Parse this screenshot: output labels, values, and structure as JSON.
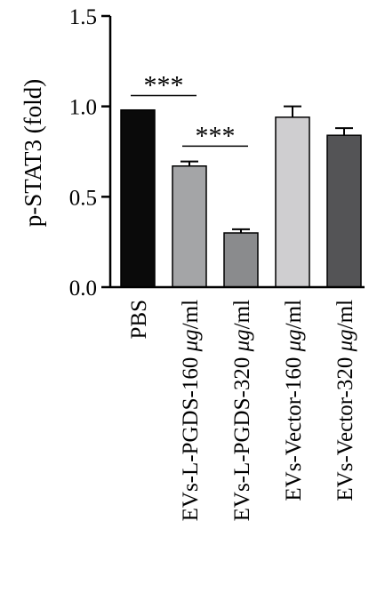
{
  "chart_data": {
    "type": "bar",
    "ylabel": "p-STAT3 (fold)",
    "xlabel": "",
    "ylim": [
      0,
      1.5
    ],
    "yticks": [
      0.0,
      0.5,
      1.0,
      1.5
    ],
    "ytick_labels": [
      "0.0",
      "0.5",
      "1.0",
      "1.5"
    ],
    "categories": [
      {
        "label": "PBS",
        "pre": "PBS",
        "unit": "",
        "post": ""
      },
      {
        "label": "EVs-L-PGDS-160 μg/ml",
        "pre": "EVs-L-PGDS-160 ",
        "unit": "μg",
        "post": "/ml"
      },
      {
        "label": "EVs-L-PGDS-320 μg/ml",
        "pre": "EVs-L-PGDS-320 ",
        "unit": "μg",
        "post": "/ml"
      },
      {
        "label": "EVs-Vector-160 μg/ml",
        "pre": "EVs-Vector-160 ",
        "unit": "μg",
        "post": "/ml"
      },
      {
        "label": "EVs-Vector-320 μg/ml",
        "pre": "EVs-Vector-320 ",
        "unit": "μg",
        "post": "/ml"
      }
    ],
    "values": [
      0.98,
      0.67,
      0.3,
      0.94,
      0.84
    ],
    "errors": [
      0.0,
      0.025,
      0.02,
      0.06,
      0.04
    ],
    "colors": [
      "#0a0a0a",
      "#a4a5a7",
      "#8a8b8d",
      "#cfced0",
      "#545456"
    ],
    "significance": [
      {
        "from": 0,
        "to": 1,
        "y": 1.06,
        "label": "***"
      },
      {
        "from": 1,
        "to": 2,
        "y": 0.78,
        "label": "***"
      }
    ],
    "grid": false,
    "legend": "none"
  }
}
